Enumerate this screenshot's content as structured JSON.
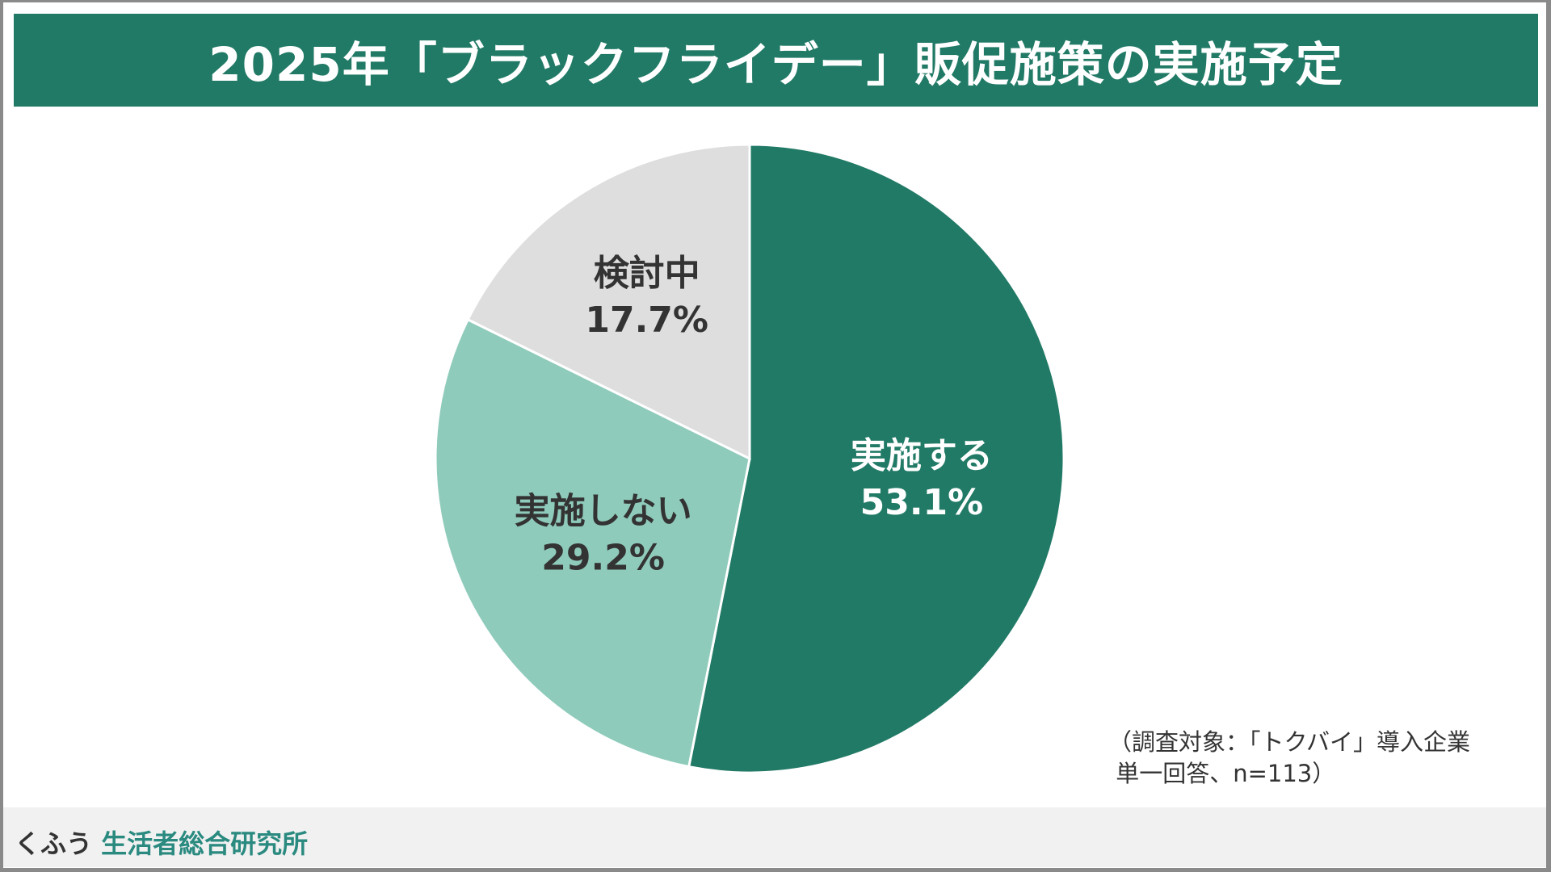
{
  "title": "2025年「ブラックフライデー」販促施策の実施予定",
  "chart_data": {
    "type": "pie",
    "title": "2025年「ブラックフライデー」販促施策の実施予定",
    "slices": [
      {
        "label": "実施する",
        "value": 53.1,
        "display": "53.1%",
        "color": "#217a66",
        "text_color": "#ffffff"
      },
      {
        "label": "実施しない",
        "value": 29.2,
        "display": "29.2%",
        "color": "#8fcbbb",
        "text_color": "#333333"
      },
      {
        "label": "検討中",
        "value": 17.7,
        "display": "17.7%",
        "color": "#dedede",
        "text_color": "#333333"
      }
    ],
    "start": "top",
    "direction": "clockwise"
  },
  "note": "（調査対象：「トクバイ」導入企業\n 単一回答、n=113）",
  "footer": {
    "brand_prefix": "くふう",
    "brand_name": "生活者総合研究所"
  }
}
